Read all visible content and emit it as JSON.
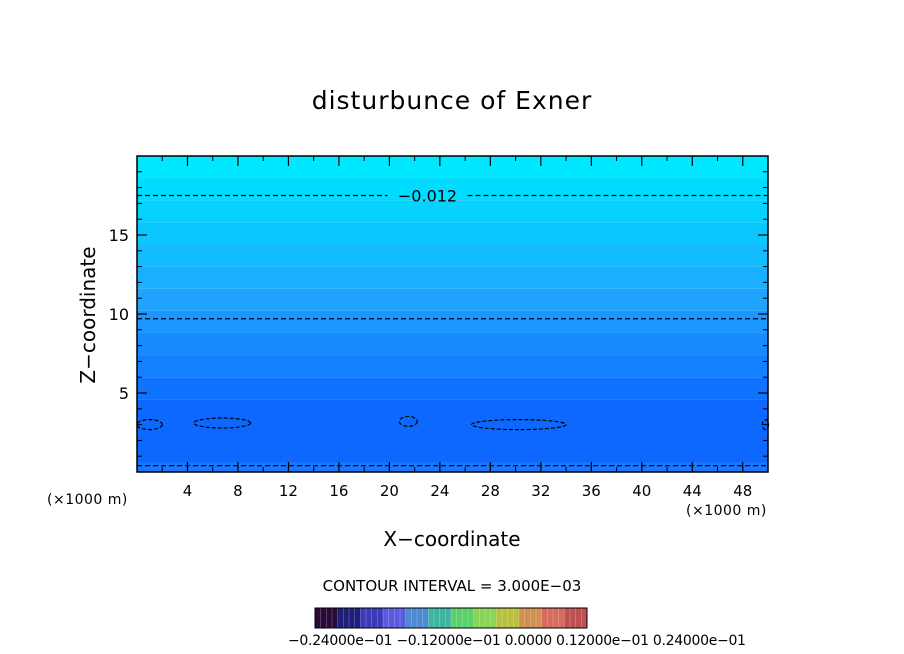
{
  "chart_data": {
    "type": "heatmap",
    "title": "disturbunce of Exner",
    "xlabel": "X−coordinate",
    "ylabel": "Z−coordinate",
    "x_unit_left": "(×1000 m)",
    "x_unit_right": "(×1000 m)",
    "xlim": [
      0,
      50
    ],
    "ylim": [
      0,
      20
    ],
    "x_ticks": [
      4,
      8,
      12,
      16,
      20,
      24,
      28,
      32,
      36,
      40,
      44,
      48
    ],
    "y_ticks": [
      5,
      10,
      15
    ],
    "contour_interval_text": "CONTOUR INTERVAL = 3.000E−03",
    "colorbar_labels_text": "−0.24000e−01  −0.12000e−01  0.0000  0.12000e−01  0.24000e−01",
    "fill_bands": [
      {
        "z_bottom": 0.0,
        "z_top": 0.6,
        "color": "#1a78ff"
      },
      {
        "z_bottom": 0.6,
        "z_top": 4.6,
        "color": "#0c68ff"
      },
      {
        "z_bottom": 4.6,
        "z_top": 6.0,
        "color": "#0f73ff"
      },
      {
        "z_bottom": 6.0,
        "z_top": 7.4,
        "color": "#147fff"
      },
      {
        "z_bottom": 7.4,
        "z_top": 8.8,
        "color": "#188bff"
      },
      {
        "z_bottom": 8.8,
        "z_top": 10.2,
        "color": "#1c97ff"
      },
      {
        "z_bottom": 10.2,
        "z_top": 11.6,
        "color": "#1fa3ff"
      },
      {
        "z_bottom": 11.6,
        "z_top": 13.0,
        "color": "#1aafff"
      },
      {
        "z_bottom": 13.0,
        "z_top": 14.4,
        "color": "#13bbff"
      },
      {
        "z_bottom": 14.4,
        "z_top": 15.8,
        "color": "#0cc6ff"
      },
      {
        "z_bottom": 15.8,
        "z_top": 17.2,
        "color": "#06d1ff"
      },
      {
        "z_bottom": 17.2,
        "z_top": 18.6,
        "color": "#00dcff"
      },
      {
        "z_bottom": 18.6,
        "z_top": 20.0,
        "color": "#00e8ff"
      }
    ],
    "contour_lines": [
      {
        "z": 17.5,
        "label": "−0.012"
      },
      {
        "z": 9.7,
        "label": ""
      },
      {
        "z": 0.4,
        "label": ""
      }
    ],
    "contour_cells": [
      {
        "x": [
          0,
          2
        ],
        "z": 3.0
      },
      {
        "x": [
          4.5,
          9
        ],
        "z": 3.1
      },
      {
        "x": [
          20.8,
          22.2
        ],
        "z": 3.2
      },
      {
        "x": [
          26.5,
          34
        ],
        "z": 3.0
      },
      {
        "x": [
          49.6,
          50
        ],
        "z": 3.0
      }
    ],
    "colorbar_colors": [
      "#2a0a3a",
      "#1f1f7a",
      "#3b3bb8",
      "#5a5ae0",
      "#4c8ad4",
      "#3fb4a0",
      "#5cd06a",
      "#8ad456",
      "#b8c040",
      "#d09050",
      "#d86a60",
      "#c05050"
    ]
  }
}
